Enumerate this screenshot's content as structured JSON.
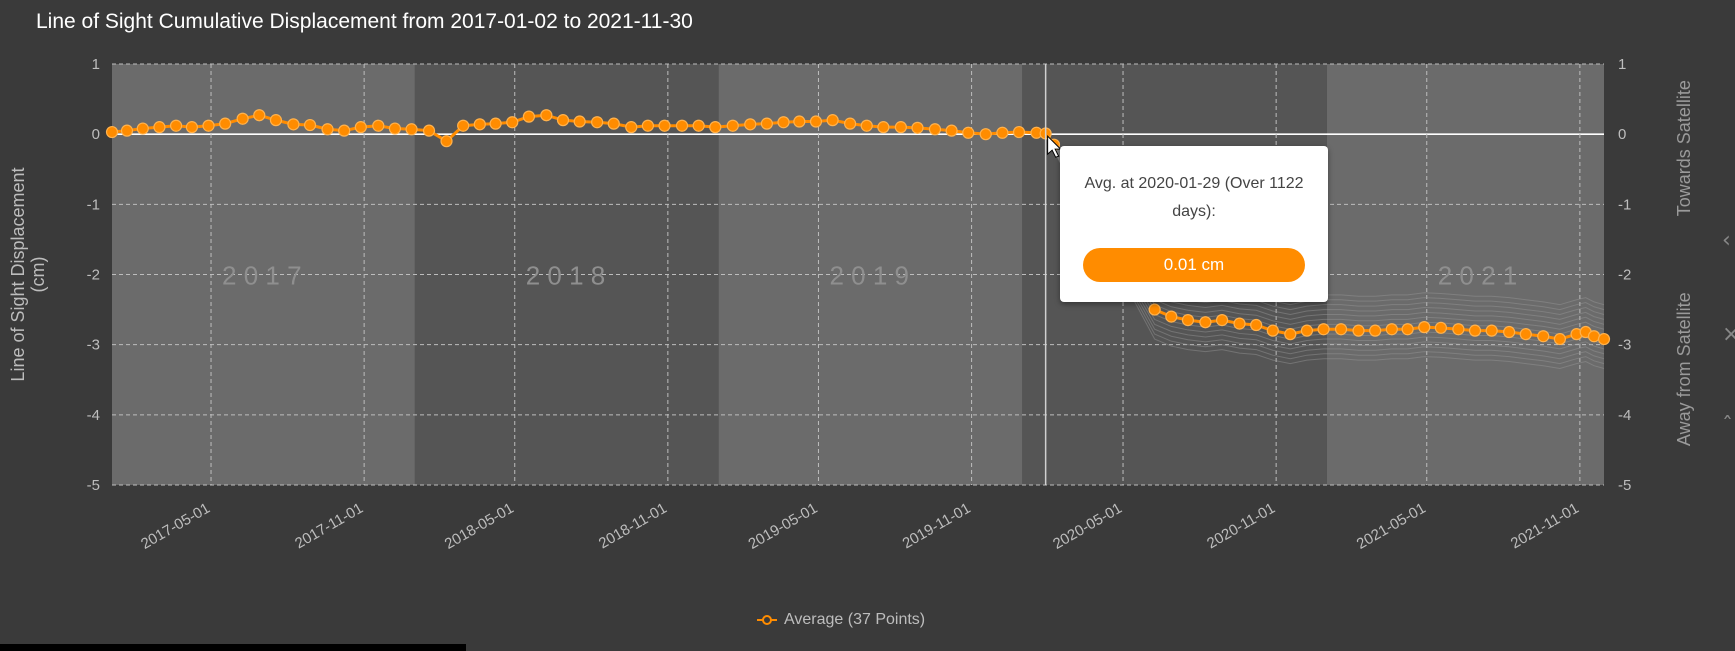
{
  "title": "Line of Sight Cumulative Displacement from 2017-01-02 to 2021-11-30",
  "colors": {
    "accent": "#ff8c00",
    "background": "#3a3a3a",
    "plot_light": "#6b6b6b",
    "plot_dark": "#555555"
  },
  "tooltip": {
    "text": "Avg. at 2020-01-29 (Over 1122 days):",
    "value": "0.01 cm"
  },
  "legend": {
    "label": "Average (37 Points)"
  },
  "icons": {
    "cursor": "mouse-pointer-icon",
    "legend_marker": "line-circle-marker-icon"
  },
  "chart_data": {
    "type": "line",
    "title": "Line of Sight Cumulative Displacement from 2017-01-02 to 2021-11-30",
    "ylabel": "Line of Sight Displacement (cm)",
    "ylabel_right_top": "Towards Satellite",
    "ylabel_right_bottom": "Away from Satellite",
    "ylim": [
      -5,
      1
    ],
    "yticks": [
      "1",
      "0",
      "-1",
      "-2",
      "-3",
      "-4",
      "-5"
    ],
    "xlim": [
      "2017-01-02",
      "2021-11-30"
    ],
    "xticks": [
      "2017-05-01",
      "2017-11-01",
      "2018-05-01",
      "2018-11-01",
      "2019-05-01",
      "2019-11-01",
      "2020-05-01",
      "2020-11-01",
      "2021-05-01",
      "2021-11-01"
    ],
    "year_labels": [
      "2 0 1 7",
      "2 0 1 8",
      "2 0 1 9",
      "2 0 2 1"
    ],
    "grid": true,
    "legend_position": "bottom-center",
    "hover_date": "2020-01-29",
    "series": [
      {
        "name": "Average (37 Points)",
        "x": [
          "2017-01-02",
          "2017-01-20",
          "2017-02-08",
          "2017-02-28",
          "2017-03-20",
          "2017-04-08",
          "2017-04-28",
          "2017-05-18",
          "2017-06-08",
          "2017-06-28",
          "2017-07-18",
          "2017-08-08",
          "2017-08-28",
          "2017-09-18",
          "2017-10-08",
          "2017-10-28",
          "2017-11-18",
          "2017-12-08",
          "2017-12-28",
          "2018-01-18",
          "2018-02-08",
          "2018-02-28",
          "2018-03-20",
          "2018-04-08",
          "2018-04-28",
          "2018-05-18",
          "2018-06-08",
          "2018-06-28",
          "2018-07-18",
          "2018-08-08",
          "2018-08-28",
          "2018-09-18",
          "2018-10-08",
          "2018-10-28",
          "2018-11-18",
          "2018-12-08",
          "2018-12-28",
          "2019-01-18",
          "2019-02-08",
          "2019-02-28",
          "2019-03-20",
          "2019-04-08",
          "2019-04-28",
          "2019-05-18",
          "2019-06-08",
          "2019-06-28",
          "2019-07-18",
          "2019-08-08",
          "2019-08-28",
          "2019-09-18",
          "2019-10-08",
          "2019-10-28",
          "2019-11-18",
          "2019-12-08",
          "2019-12-28",
          "2020-01-18",
          "2020-01-29",
          "2020-02-08",
          "2020-06-08",
          "2020-06-28",
          "2020-07-18",
          "2020-08-08",
          "2020-08-28",
          "2020-09-18",
          "2020-10-08",
          "2020-10-28",
          "2020-11-18",
          "2020-12-08",
          "2020-12-28",
          "2021-01-18",
          "2021-02-08",
          "2021-02-28",
          "2021-03-20",
          "2021-04-08",
          "2021-04-28",
          "2021-05-18",
          "2021-06-08",
          "2021-06-28",
          "2021-07-18",
          "2021-08-08",
          "2021-08-28",
          "2021-09-18",
          "2021-10-08",
          "2021-10-28",
          "2021-11-08",
          "2021-11-18",
          "2021-11-30"
        ],
        "y": [
          0.03,
          0.05,
          0.08,
          0.1,
          0.12,
          0.1,
          0.12,
          0.15,
          0.22,
          0.27,
          0.2,
          0.14,
          0.13,
          0.07,
          0.05,
          0.1,
          0.12,
          0.08,
          0.07,
          0.05,
          -0.1,
          0.12,
          0.14,
          0.15,
          0.17,
          0.25,
          0.27,
          0.2,
          0.18,
          0.17,
          0.15,
          0.1,
          0.12,
          0.12,
          0.12,
          0.12,
          0.1,
          0.12,
          0.14,
          0.15,
          0.17,
          0.18,
          0.18,
          0.2,
          0.15,
          0.12,
          0.1,
          0.1,
          0.09,
          0.07,
          0.05,
          0.02,
          0.0,
          0.02,
          0.03,
          0.02,
          0.01,
          -0.15,
          -2.5,
          -2.6,
          -2.65,
          -2.68,
          -2.65,
          -2.7,
          -2.72,
          -2.8,
          -2.85,
          -2.8,
          -2.78,
          -2.78,
          -2.8,
          -2.8,
          -2.78,
          -2.78,
          -2.75,
          -2.76,
          -2.78,
          -2.8,
          -2.8,
          -2.82,
          -2.85,
          -2.88,
          -2.92,
          -2.85,
          -2.82,
          -2.88,
          -2.92
        ]
      }
    ]
  }
}
